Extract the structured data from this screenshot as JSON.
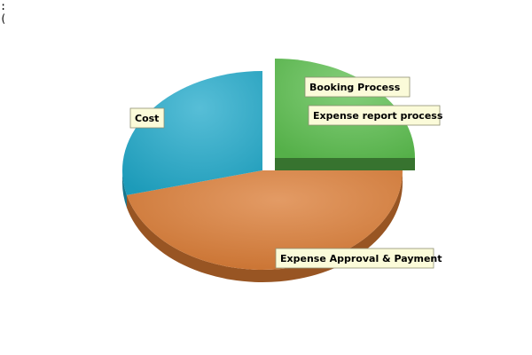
{
  "corner_text": {
    "line1": ":",
    "line2": "("
  },
  "chart_data": {
    "type": "pie",
    "style": "3d-exploded",
    "title": "",
    "legend": "none",
    "slices": [
      {
        "label": "Booking Process",
        "value": 0.0,
        "color": "#d9c98a"
      },
      {
        "label": "Expense report process",
        "value": 25,
        "color": "#5cbf4f"
      },
      {
        "label": "Expense Approval & Payment",
        "value": 46,
        "color": "#d97a32"
      },
      {
        "label": "Cost",
        "value": 29,
        "color": "#1fa8c9"
      }
    ]
  }
}
